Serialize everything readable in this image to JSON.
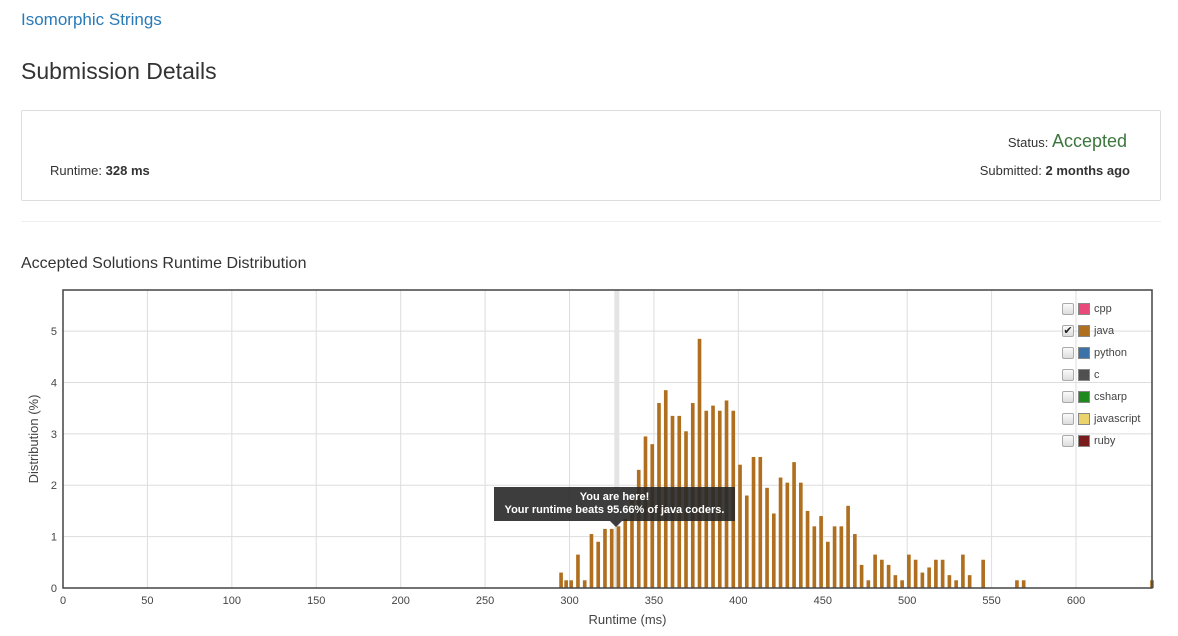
{
  "header": {
    "problem_link": "Isomorphic Strings",
    "page_title": "Submission Details"
  },
  "details": {
    "runtime_label": "Runtime:",
    "runtime_value": "328 ms",
    "status_label": "Status:",
    "status_value": "Accepted",
    "submitted_label": "Submitted:",
    "submitted_value": "2 months ago"
  },
  "section_title": "Accepted Solutions Runtime Distribution",
  "tooltip": {
    "line1": "You are here!",
    "line2": "Your runtime beats 95.66% of java coders."
  },
  "legend": [
    {
      "label": "cpp",
      "color": "#e84a7a",
      "checked": false
    },
    {
      "label": "java",
      "color": "#b06f1f",
      "checked": true
    },
    {
      "label": "python",
      "color": "#3b73a8",
      "checked": false
    },
    {
      "label": "c",
      "color": "#505050",
      "checked": false
    },
    {
      "label": "csharp",
      "color": "#1e8a1e",
      "checked": false
    },
    {
      "label": "javascript",
      "color": "#ead36a",
      "checked": false
    },
    {
      "label": "ruby",
      "color": "#7a1c1c",
      "checked": false
    }
  ],
  "chart_data": {
    "type": "bar",
    "xlabel": "Runtime (ms)",
    "ylabel": "Distribution (%)",
    "xlim": [
      0,
      645
    ],
    "ylim": [
      0,
      5.8
    ],
    "xticks": [
      0,
      50,
      100,
      150,
      200,
      250,
      300,
      350,
      400,
      450,
      500,
      550,
      600
    ],
    "yticks": [
      0,
      1,
      2,
      3,
      4,
      5
    ],
    "grid": true,
    "legend": "top-right",
    "highlight_x": 328,
    "bar_color": "#b06f1f",
    "series": [
      {
        "name": "java",
        "x": [
          295,
          298,
          301,
          305,
          309,
          313,
          317,
          321,
          325,
          329,
          333,
          337,
          341,
          345,
          349,
          353,
          357,
          361,
          365,
          369,
          373,
          377,
          381,
          385,
          389,
          393,
          397,
          401,
          405,
          409,
          413,
          417,
          421,
          425,
          429,
          433,
          437,
          441,
          445,
          449,
          453,
          457,
          461,
          465,
          469,
          473,
          477,
          481,
          485,
          489,
          493,
          497,
          501,
          505,
          509,
          513,
          517,
          521,
          525,
          529,
          533,
          537,
          545,
          565,
          569,
          645
        ],
        "values": [
          0.3,
          0.15,
          0.15,
          0.65,
          0.15,
          1.05,
          0.9,
          1.15,
          1.15,
          1.2,
          1.35,
          1.75,
          2.3,
          2.95,
          2.8,
          3.6,
          3.85,
          3.35,
          3.35,
          3.05,
          3.6,
          4.85,
          3.45,
          3.55,
          3.45,
          3.65,
          3.45,
          2.4,
          1.8,
          2.55,
          2.55,
          1.95,
          1.45,
          2.15,
          2.05,
          2.45,
          2.05,
          1.5,
          1.2,
          1.4,
          0.9,
          1.2,
          1.2,
          1.6,
          1.05,
          0.45,
          0.15,
          0.65,
          0.55,
          0.45,
          0.25,
          0.15,
          0.65,
          0.55,
          0.3,
          0.4,
          0.55,
          0.55,
          0.25,
          0.15,
          0.65,
          0.25,
          0.55,
          0.15,
          0.15,
          0.15
        ]
      }
    ]
  }
}
